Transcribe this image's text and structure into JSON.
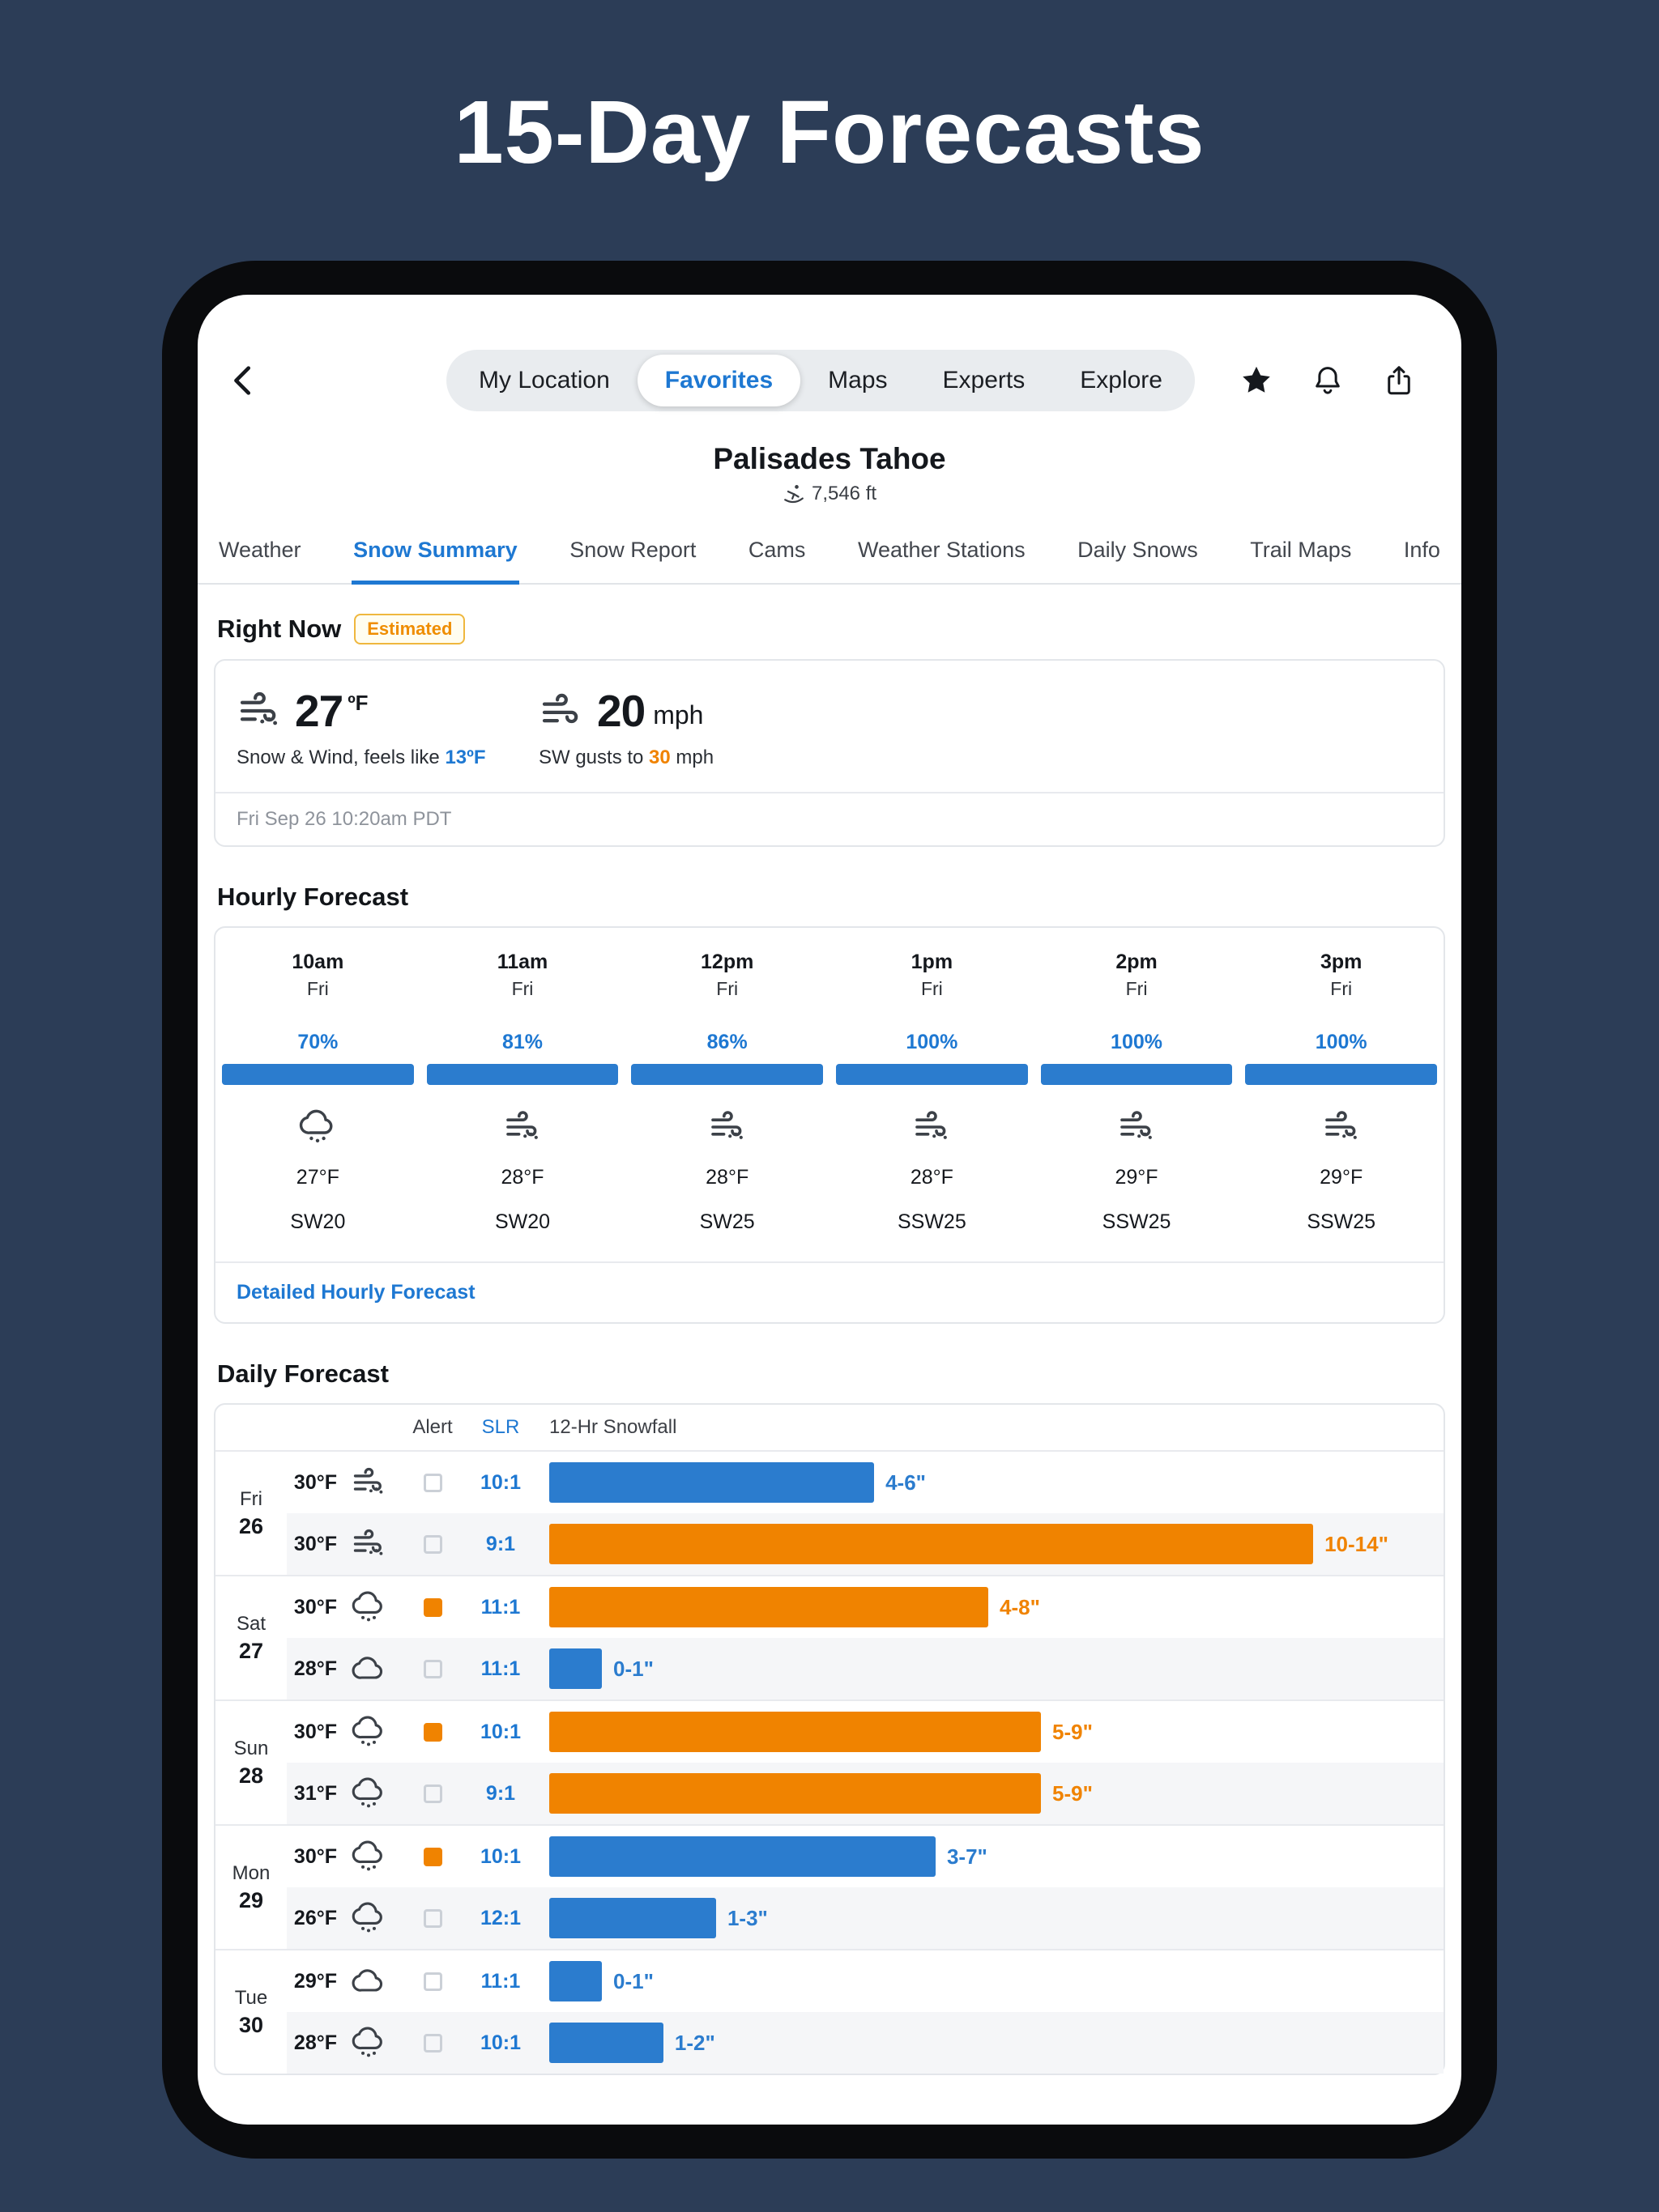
{
  "page": {
    "title": "15-Day Forecasts"
  },
  "nav": {
    "items": [
      {
        "label": "My Location"
      },
      {
        "label": "Favorites"
      },
      {
        "label": "Maps"
      },
      {
        "label": "Experts"
      },
      {
        "label": "Explore"
      }
    ],
    "active": "Favorites",
    "icons": [
      "back-chevron-icon",
      "star-icon",
      "bell-icon",
      "share-icon"
    ]
  },
  "location": {
    "name": "Palisades Tahoe",
    "elevation": "7,546 ft",
    "elevation_icon": "skier-icon"
  },
  "section_tabs": {
    "items": [
      {
        "label": "Weather"
      },
      {
        "label": "Snow Summary"
      },
      {
        "label": "Snow Report"
      },
      {
        "label": "Cams"
      },
      {
        "label": "Weather Stations"
      },
      {
        "label": "Daily Snows"
      },
      {
        "label": "Trail Maps"
      },
      {
        "label": "Info"
      }
    ],
    "active": "Snow Summary"
  },
  "right_now": {
    "heading": "Right Now",
    "badge": "Estimated",
    "temp": "27",
    "temp_unit": "ºF",
    "temp_icon": "blowing-snow-icon",
    "feels_prefix": "Snow & Wind, feels like ",
    "feels_value": "13ºF",
    "wind": "20",
    "wind_unit": "mph",
    "wind_icon": "wind-icon",
    "gust_prefix": "SW gusts to ",
    "gust_value": "30",
    "gust_suffix": " mph",
    "timestamp": "Fri Sep 26 10:20am PDT"
  },
  "hourly": {
    "heading": "Hourly Forecast",
    "link": "Detailed Hourly Forecast",
    "columns": [
      {
        "time": "10am",
        "day": "Fri",
        "pct": "70%",
        "icon": "snow-shower-icon",
        "temp": "27°F",
        "wind": "SW20"
      },
      {
        "time": "11am",
        "day": "Fri",
        "pct": "81%",
        "icon": "blowing-snow-icon",
        "temp": "28°F",
        "wind": "SW20"
      },
      {
        "time": "12pm",
        "day": "Fri",
        "pct": "86%",
        "icon": "blowing-snow-icon",
        "temp": "28°F",
        "wind": "SW25"
      },
      {
        "time": "1pm",
        "day": "Fri",
        "pct": "100%",
        "icon": "blowing-snow-icon",
        "temp": "28°F",
        "wind": "SSW25"
      },
      {
        "time": "2pm",
        "day": "Fri",
        "pct": "100%",
        "icon": "blowing-snow-icon",
        "temp": "29°F",
        "wind": "SSW25"
      },
      {
        "time": "3pm",
        "day": "Fri",
        "pct": "100%",
        "icon": "blowing-snow-icon",
        "temp": "29°F",
        "wind": "SSW25"
      }
    ]
  },
  "daily": {
    "heading": "Daily Forecast",
    "header": {
      "alert": "Alert",
      "slr": "SLR",
      "snowfall": "12-Hr Snowfall"
    },
    "days": [
      {
        "day": "Fri",
        "date": "26",
        "rows": [
          {
            "temp": "30°F",
            "icon": "blowing-snow-icon",
            "slr": "10:1",
            "amount": "4-6\"",
            "bar_pct": 37,
            "bar_color": "#2b7cce"
          },
          {
            "temp": "30°F",
            "icon": "blowing-snow-icon",
            "slr": "9:1",
            "amount": "10-14\"",
            "bar_pct": 87,
            "bar_color": "#f08300"
          }
        ]
      },
      {
        "day": "Sat",
        "date": "27",
        "rows": [
          {
            "temp": "30°F",
            "icon": "snow-shower-icon",
            "alert_color": "#f08300",
            "slr": "11:1",
            "amount": "4-8\"",
            "bar_pct": 50,
            "bar_color": "#f08300"
          },
          {
            "temp": "28°F",
            "icon": "cloud-icon",
            "slr": "11:1",
            "amount": "0-1\"",
            "bar_pct": 6,
            "bar_color": "#2b7cce"
          }
        ]
      },
      {
        "day": "Sun",
        "date": "28",
        "rows": [
          {
            "temp": "30°F",
            "icon": "snow-shower-icon",
            "alert_color": "#f08300",
            "slr": "10:1",
            "amount": "5-9\"",
            "bar_pct": 56,
            "bar_color": "#f08300"
          },
          {
            "temp": "31°F",
            "icon": "snow-shower-icon",
            "slr": "9:1",
            "amount": "5-9\"",
            "bar_pct": 56,
            "bar_color": "#f08300"
          }
        ]
      },
      {
        "day": "Mon",
        "date": "29",
        "rows": [
          {
            "temp": "30°F",
            "icon": "snow-shower-icon",
            "alert_color": "#f08300",
            "slr": "10:1",
            "amount": "3-7\"",
            "bar_pct": 44,
            "bar_color": "#2b7cce"
          },
          {
            "temp": "26°F",
            "icon": "snow-shower-icon",
            "slr": "12:1",
            "amount": "1-3\"",
            "bar_pct": 19,
            "bar_color": "#2b7cce"
          }
        ]
      },
      {
        "day": "Tue",
        "date": "30",
        "rows": [
          {
            "temp": "29°F",
            "icon": "cloud-icon",
            "slr": "11:1",
            "amount": "0-1\"",
            "bar_pct": 6,
            "bar_color": "#2b7cce"
          },
          {
            "temp": "28°F",
            "icon": "snow-shower-icon",
            "slr": "10:1",
            "amount": "1-2\"",
            "bar_pct": 13,
            "bar_color": "#2b7cce"
          }
        ]
      }
    ]
  },
  "colors": {
    "accent_blue": "#1e78d2",
    "bar_blue": "#2b7cce",
    "bar_orange": "#f08300",
    "badge_orange": "#ef8d00",
    "navy_background": "#2c3d57"
  }
}
